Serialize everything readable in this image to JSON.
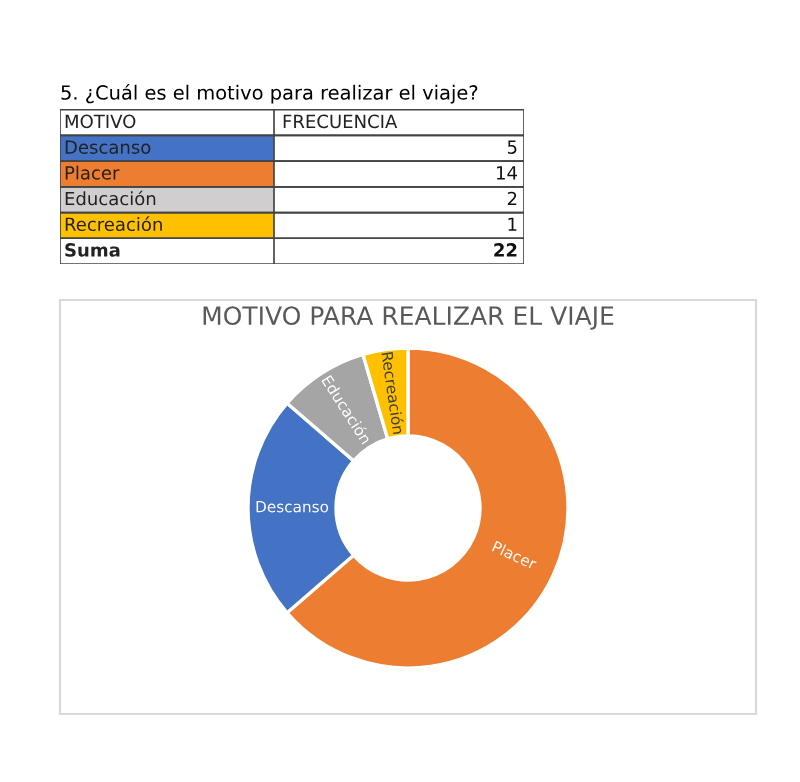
{
  "chart_data": [
    {
      "type": "other",
      "title": "5. ¿Cuál es el motivo para realizar el viaje?",
      "categories": [
        "Descanso",
        "Placer",
        "Educación",
        "Recreación"
      ],
      "values": [
        5,
        14,
        2,
        1
      ],
      "colors": [
        "#4472c4",
        "#ed7d31",
        "#d0cece",
        "#ffc000"
      ],
      "data_labels": true,
      "annotations": [
        "MOTIVO",
        "FRECUENCIA",
        "Suma",
        "22"
      ]
    },
    {
      "type": "donut",
      "title": "MOTIVO PARA REALIZAR EL VIAJE",
      "categories": [
        "Placer",
        "Descanso",
        "Educación",
        "Recreación"
      ],
      "values": [
        63.64,
        22.73,
        9.09,
        4.54
      ],
      "colors": [
        "#ed7d31",
        "#4472c4",
        "#a5a5a5",
        "#ffc000"
      ],
      "legend": false
    }
  ]
}
